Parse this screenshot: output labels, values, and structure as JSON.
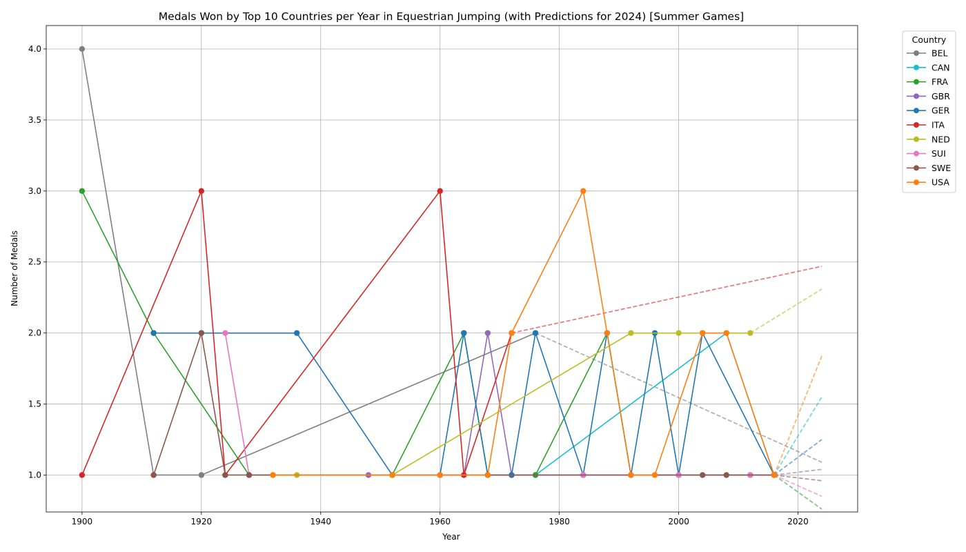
{
  "chart_data": {
    "type": "line",
    "title": "Medals Won by Top 10 Countries per Year in Equestrian Jumping (with Predictions for 2024) [Summer Games]",
    "xlabel": "Year",
    "ylabel": "Number of Medals",
    "xlim": [
      1894,
      2030
    ],
    "ylim": [
      0.74,
      4.165
    ],
    "xticks": [
      1900,
      1920,
      1940,
      1960,
      1980,
      2000,
      2020
    ],
    "yticks": [
      1.0,
      1.5,
      2.0,
      2.5,
      3.0,
      3.5,
      4.0
    ],
    "grid": true,
    "legend": {
      "title": "Country",
      "placement": "outside-top-right"
    },
    "series": [
      {
        "name": "BEL",
        "color": "#7f7f7f",
        "x": [
          1900,
          1912,
          1920,
          1976
        ],
        "y": [
          4,
          1,
          1,
          2
        ],
        "prediction": {
          "x": [
            1976,
            2024
          ],
          "y": [
            2,
            1.09
          ]
        }
      },
      {
        "name": "CAN",
        "color": "#17becf",
        "x": [
          1976,
          2008,
          2016
        ],
        "y": [
          1,
          2,
          1
        ],
        "prediction": {
          "x": [
            2016,
            2024
          ],
          "y": [
            1,
            1.55
          ]
        }
      },
      {
        "name": "FRA",
        "color": "#2ca02c",
        "x": [
          1900,
          1912,
          1928,
          1952,
          1964,
          1968,
          1976,
          1988,
          1992,
          2016
        ],
        "y": [
          3,
          2,
          1,
          1,
          2,
          1,
          1,
          2,
          1,
          1
        ],
        "prediction": {
          "x": [
            2016,
            2024
          ],
          "y": [
            1,
            0.76
          ]
        }
      },
      {
        "name": "GBR",
        "color": "#9467bd",
        "x": [
          1948,
          1952,
          1960,
          1964,
          1968,
          1972,
          1984,
          2012,
          2016
        ],
        "y": [
          1,
          1,
          1,
          1,
          2,
          1,
          1,
          1,
          1
        ],
        "prediction": {
          "x": [
            2016,
            2024
          ],
          "y": [
            1,
            1.04
          ]
        }
      },
      {
        "name": "GER",
        "color": "#1f77b4",
        "x": [
          1912,
          1920,
          1936,
          1952,
          1960,
          1964,
          1968,
          1972,
          1976,
          1984,
          1988,
          1992,
          1996,
          2000,
          2004,
          2016
        ],
        "y": [
          2,
          2,
          2,
          1,
          1,
          2,
          1,
          1,
          2,
          1,
          2,
          1,
          2,
          1,
          2,
          1
        ],
        "prediction": {
          "x": [
            2016,
            2024
          ],
          "y": [
            1,
            1.25
          ]
        }
      },
      {
        "name": "ITA",
        "color": "#d62728",
        "x": [
          1900,
          1920,
          1924,
          1960,
          1964,
          1972
        ],
        "y": [
          1,
          3,
          1,
          3,
          1,
          2
        ],
        "prediction": {
          "x": [
            1972,
            2024
          ],
          "y": [
            2,
            2.47
          ]
        }
      },
      {
        "name": "NED",
        "color": "#bcbd22",
        "x": [
          1932,
          1936,
          1952,
          1992,
          2000,
          2012
        ],
        "y": [
          1,
          1,
          1,
          2,
          2,
          2
        ],
        "prediction": {
          "x": [
            2012,
            2024
          ],
          "y": [
            2,
            2.31
          ]
        }
      },
      {
        "name": "SUI",
        "color": "#e377c2",
        "x": [
          1924,
          1928,
          1984,
          2000,
          2012,
          2016
        ],
        "y": [
          2,
          1,
          1,
          1,
          1,
          1
        ],
        "prediction": {
          "x": [
            2016,
            2024
          ],
          "y": [
            1,
            0.85
          ]
        }
      },
      {
        "name": "SWE",
        "color": "#8c564b",
        "x": [
          1912,
          1920,
          1924,
          1928,
          2004,
          2008,
          2016
        ],
        "y": [
          1,
          2,
          1,
          1,
          1,
          1,
          1
        ],
        "prediction": {
          "x": [
            2016,
            2024
          ],
          "y": [
            1,
            0.96
          ]
        }
      },
      {
        "name": "USA",
        "color": "#ff7f0e",
        "x": [
          1932,
          1952,
          1960,
          1968,
          1972,
          1984,
          1988,
          1992,
          1996,
          2004,
          2008,
          2016
        ],
        "y": [
          1,
          1,
          1,
          1,
          2,
          3,
          2,
          1,
          1,
          2,
          2,
          1
        ],
        "prediction": {
          "x": [
            2016,
            2024
          ],
          "y": [
            1,
            1.84
          ]
        }
      }
    ]
  }
}
